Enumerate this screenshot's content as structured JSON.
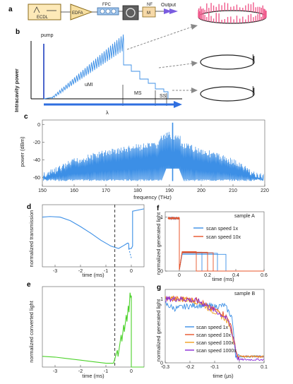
{
  "panel_letters": [
    "a",
    "b",
    "c",
    "d",
    "e",
    "f",
    "g"
  ],
  "setup": {
    "ecdl": "ECDL",
    "edfa": "EDFA",
    "fpc": "FPC",
    "nf": "NF",
    "nf_box": "M",
    "output": "Output"
  },
  "panel_b": {
    "ylabel": "Intracavity power",
    "xlabel": "λ",
    "labels": {
      "pump": "pump",
      "umi": "uMI",
      "ms": "MS",
      "ss": "SS"
    }
  },
  "colors": {
    "blue": "#3c8fe6",
    "dark_blue": "#1f3fbf",
    "red": "#e8542a",
    "orange": "#f0a020",
    "purple": "#8a2bd6",
    "green": "#4cd22a",
    "pink": "#f05a8c"
  },
  "chart_data": [
    {
      "panel": "c",
      "type": "line",
      "xlabel": "frequency (THz)",
      "ylabel": "power (dBm)",
      "xlim": [
        150,
        220
      ],
      "ylim": [
        -70,
        5
      ],
      "xticks": [
        150,
        160,
        170,
        180,
        190,
        200,
        210,
        220
      ],
      "yticks": [
        0,
        -20,
        -40,
        -60
      ],
      "grid": false,
      "envelope": {
        "x": [
          152,
          160,
          170,
          180,
          186,
          190,
          194,
          200,
          210,
          218
        ],
        "y": [
          -52,
          -38,
          -28,
          -22,
          -20,
          -14,
          -20,
          -26,
          -38,
          -55
        ]
      },
      "pump": {
        "x": 191,
        "y": 2
      },
      "noise_floor": -64
    },
    {
      "panel": "d",
      "type": "line",
      "xlabel": "time (ms)",
      "ylabel": "normalized transmission",
      "xlim": [
        -3.5,
        0.5
      ],
      "ylim": [
        0,
        1.05
      ],
      "xticks": [
        -3,
        -2,
        -1,
        0
      ],
      "yticks": [],
      "grid": false,
      "series": [
        {
          "name": "",
          "x": [
            -3.5,
            -3.2,
            -2.8,
            -2.4,
            -2.0,
            -1.6,
            -1.2,
            -0.8,
            -0.5,
            -0.3,
            -0.15,
            -0.12,
            -0.1,
            -0.1,
            0.0,
            0.05,
            0.05,
            0.5
          ],
          "y": [
            0.84,
            0.85,
            0.84,
            0.78,
            0.68,
            0.57,
            0.45,
            0.35,
            0.31,
            0.36,
            0.4,
            0.4,
            0.38,
            0.31,
            0.31,
            0.35,
            0.94,
            0.98
          ]
        },
        {
          "name": "",
          "dashed": true,
          "x": [
            -0.1,
            0.0
          ],
          "y": [
            0.31,
            0.15
          ]
        }
      ],
      "vline": -0.65
    },
    {
      "panel": "e",
      "type": "line",
      "xlabel": "time (ms)",
      "ylabel": "normalized converted light",
      "xlim": [
        -3.5,
        0.5
      ],
      "ylim": [
        0,
        1.05
      ],
      "xticks": [
        -3,
        -2,
        -1,
        0
      ],
      "yticks": [],
      "grid": false,
      "series": [
        {
          "name": "",
          "x": [
            -3.5,
            -3.0,
            -2.5,
            -2.0,
            -1.5,
            -1.0,
            -0.7,
            -0.55,
            -0.4,
            -0.3,
            -0.2,
            -0.12,
            -0.05,
            0.0,
            0.0,
            0.5
          ],
          "y": [
            0.14,
            0.13,
            0.11,
            0.09,
            0.07,
            0.05,
            0.05,
            0.22,
            0.42,
            0.55,
            0.68,
            0.8,
            0.97,
            0.93,
            0.0,
            0.0
          ]
        }
      ],
      "vline": -0.65
    },
    {
      "panel": "f",
      "type": "line",
      "title": "sample A",
      "xlabel": "time (ms)",
      "ylabel": "normalized generated light",
      "xlim": [
        -0.1,
        0.6
      ],
      "ylim": [
        0,
        1.1
      ],
      "xticks": [
        0,
        0.2,
        0.4,
        0.6
      ],
      "yticks": [
        0,
        1
      ],
      "grid": false,
      "series": [
        {
          "name": "scan speed 1x",
          "color": "#3c8fe6",
          "drops": [
            0.0,
            0.16,
            0.27,
            0.33
          ],
          "plateaus": [
            0.35,
            0.33,
            0.31
          ]
        },
        {
          "name": "scan speed 10x",
          "color": "#e8542a",
          "drops": [
            0.0,
            0.12,
            0.2,
            0.24
          ],
          "plateaus": [
            0.36,
            0.35,
            0.34
          ]
        }
      ]
    },
    {
      "panel": "g",
      "type": "line",
      "title": "sample B",
      "xlabel": "time (μs)",
      "ylabel": "normalized generated light",
      "xlim": [
        -0.3,
        0.1
      ],
      "ylim": [
        0,
        1.15
      ],
      "xticks": [
        -0.3,
        -0.2,
        -0.1,
        0,
        0.1
      ],
      "yticks": [
        0,
        1
      ],
      "grid": false,
      "series": [
        {
          "name": "scan speed 1x",
          "color": "#3c8fe6",
          "x": [
            -0.3,
            -0.26,
            -0.22,
            -0.18,
            -0.14,
            -0.1,
            -0.06,
            -0.03,
            -0.015,
            0.0,
            0.1
          ],
          "y": [
            0.92,
            0.85,
            0.88,
            0.9,
            0.9,
            0.88,
            0.9,
            0.72,
            0.12,
            0.1,
            0.1
          ]
        },
        {
          "name": "scan speed 10x",
          "color": "#e8542a",
          "x": [
            -0.3,
            -0.22,
            -0.16,
            -0.12,
            -0.09,
            -0.06,
            -0.04,
            -0.02,
            -0.01,
            0.0,
            0.1
          ],
          "y": [
            1.0,
            1.0,
            0.98,
            0.86,
            0.82,
            0.76,
            0.65,
            0.35,
            0.1,
            0.1,
            0.1
          ]
        },
        {
          "name": "scan speed 100x",
          "color": "#f0a020",
          "x": [
            -0.3,
            -0.22,
            -0.16,
            -0.12,
            -0.09,
            -0.06,
            -0.04,
            -0.02,
            -0.01,
            0.0,
            0.1
          ],
          "y": [
            1.0,
            1.0,
            0.95,
            0.84,
            0.78,
            0.7,
            0.6,
            0.3,
            0.12,
            0.1,
            0.1
          ]
        },
        {
          "name": "scan speed 1000x",
          "color": "#8a2bd6",
          "x": [
            -0.3,
            -0.22,
            -0.16,
            -0.12,
            -0.09,
            -0.06,
            -0.04,
            -0.02,
            -0.01,
            0.0,
            0.1
          ],
          "y": [
            1.0,
            1.0,
            0.96,
            0.86,
            0.8,
            0.72,
            0.62,
            0.32,
            0.1,
            0.05,
            0.05
          ]
        }
      ]
    }
  ]
}
